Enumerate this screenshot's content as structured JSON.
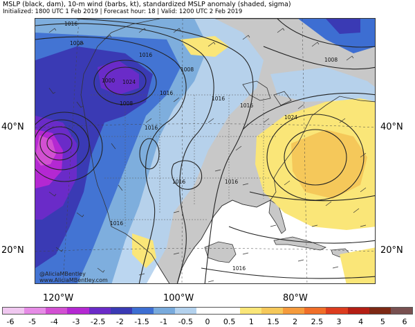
{
  "header": {
    "title": "MSLP (black, dam), 10-m wind (barbs, kt), standardized MSLP anomaly (shaded, sigma)",
    "subtitle": "Initialized: 1800 UTC 1 Feb 2019 | Forecast hour: 18 | Valid: 1200 UTC 2 Feb 2019"
  },
  "axes": {
    "lat_labels": [
      "40°N",
      "20°N"
    ],
    "lon_labels": [
      "120°W",
      "100°W",
      "80°W"
    ]
  },
  "isobar_labels": [
    "1016",
    "1008",
    "1016",
    "1000",
    "1024",
    "1008",
    "1016",
    "1008",
    "1016",
    "1016",
    "1016",
    "1024",
    "1016",
    "1016",
    "1016",
    "1016",
    "1008"
  ],
  "credit": {
    "handle": "@AliciaMBentley",
    "website": "www.AliciaMBentley.com"
  },
  "colorbar": {
    "ticks": [
      "-6",
      "-5",
      "-4",
      "-3",
      "-2.5",
      "-2",
      "-1.5",
      "-1",
      "-0.5",
      "0",
      "0.5",
      "1",
      "1.5",
      "2",
      "2.5",
      "3",
      "4",
      "5",
      "6"
    ],
    "colors": [
      "#f0c8f0",
      "#e68ce6",
      "#d250d2",
      "#b428d2",
      "#6a2bc8",
      "#3a3ab4",
      "#3d6ed2",
      "#78aadc",
      "#b4d2ee",
      "#ffffff",
      "#ffffff",
      "#fae678",
      "#f5c85a",
      "#f59b3c",
      "#f06e28",
      "#dc3c1e",
      "#b41e14",
      "#7d2814",
      "#785050"
    ]
  },
  "colors": {
    "land": "#c8c8c8",
    "water": "#ffffff",
    "isobar": "#222222",
    "coast": "#333333"
  }
}
